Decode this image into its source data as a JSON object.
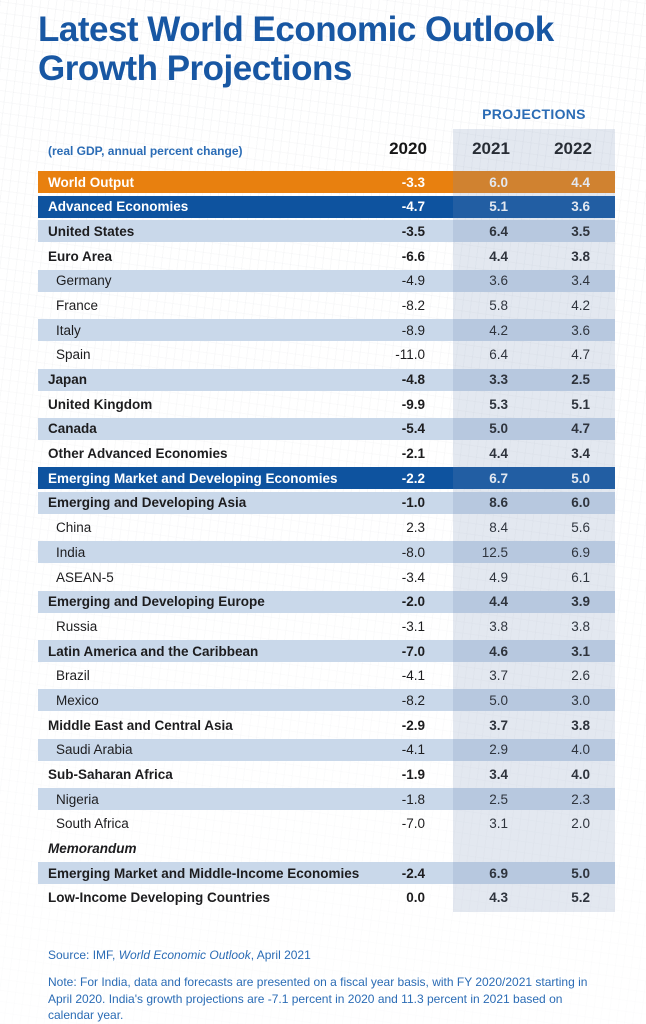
{
  "page": {
    "title": "Latest World Economic Outlook Growth Projections",
    "projections_label": "PROJECTIONS",
    "unit_label": "(real GDP, annual percent change)"
  },
  "columns": [
    "2020",
    "2021",
    "2022"
  ],
  "footer": {
    "source_prefix": "Source: IMF, ",
    "source_italic": "World Economic Outlook",
    "source_suffix": ", April 2021",
    "note": "Note: For India, data and forecasts are presented on a fiscal year basis, with FY 2020/2021 starting in April 2020. India's growth projections are -7.1 percent in 2020 and 11.3 percent in 2021 based on calendar year."
  },
  "colors": {
    "title_blue": "#1857A3",
    "accent_blue": "#2B6CB5",
    "orange": "#E8800F",
    "dark_blue": "#0E539F",
    "row_shade": "#C9D8EA",
    "band_overlay": "rgba(115,140,180,0.20)",
    "text_dark": "#1D1D1F"
  },
  "chart_data": {
    "type": "table",
    "title": "Latest World Economic Outlook Growth Projections",
    "subtitle": "(real GDP, annual percent change)",
    "columns": [
      "2020",
      "2021",
      "2022"
    ],
    "projection_columns": [
      "2021",
      "2022"
    ],
    "rows": [
      {
        "label": "World Output",
        "style": "orange",
        "shaded": false,
        "values": [
          "-3.3",
          "6.0",
          "4.4"
        ]
      },
      {
        "label": "Advanced Economies",
        "style": "darkblue",
        "shaded": false,
        "values": [
          "-4.7",
          "5.1",
          "3.6"
        ]
      },
      {
        "label": "United States",
        "style": "bold",
        "shaded": true,
        "values": [
          "-3.5",
          "6.4",
          "3.5"
        ]
      },
      {
        "label": "Euro Area",
        "style": "bold",
        "shaded": false,
        "values": [
          "-6.6",
          "4.4",
          "3.8"
        ]
      },
      {
        "label": "Germany",
        "style": "indent",
        "shaded": true,
        "values": [
          "-4.9",
          "3.6",
          "3.4"
        ]
      },
      {
        "label": "France",
        "style": "indent",
        "shaded": false,
        "values": [
          "-8.2",
          "5.8",
          "4.2"
        ]
      },
      {
        "label": "Italy",
        "style": "indent",
        "shaded": true,
        "values": [
          "-8.9",
          "4.2",
          "3.6"
        ]
      },
      {
        "label": "Spain",
        "style": "indent",
        "shaded": false,
        "values": [
          "-11.0",
          "6.4",
          "4.7"
        ]
      },
      {
        "label": "Japan",
        "style": "bold",
        "shaded": true,
        "values": [
          "-4.8",
          "3.3",
          "2.5"
        ]
      },
      {
        "label": "United Kingdom",
        "style": "bold",
        "shaded": false,
        "values": [
          "-9.9",
          "5.3",
          "5.1"
        ]
      },
      {
        "label": "Canada",
        "style": "bold",
        "shaded": true,
        "values": [
          "-5.4",
          "5.0",
          "4.7"
        ]
      },
      {
        "label": "Other Advanced Economies",
        "style": "bold",
        "shaded": false,
        "values": [
          "-2.1",
          "4.4",
          "3.4"
        ]
      },
      {
        "label": "Emerging Market and Developing Economies",
        "style": "darkblue",
        "shaded": false,
        "values": [
          "-2.2",
          "6.7",
          "5.0"
        ]
      },
      {
        "label": "Emerging and Developing Asia",
        "style": "bold",
        "shaded": true,
        "values": [
          "-1.0",
          "8.6",
          "6.0"
        ]
      },
      {
        "label": "China",
        "style": "indent",
        "shaded": false,
        "values": [
          "2.3",
          "8.4",
          "5.6"
        ]
      },
      {
        "label": "India",
        "style": "indent",
        "shaded": true,
        "values": [
          "-8.0",
          "12.5",
          "6.9"
        ]
      },
      {
        "label": "ASEAN-5",
        "style": "indent",
        "shaded": false,
        "values": [
          "-3.4",
          "4.9",
          "6.1"
        ]
      },
      {
        "label": "Emerging and Developing Europe",
        "style": "bold",
        "shaded": true,
        "values": [
          "-2.0",
          "4.4",
          "3.9"
        ]
      },
      {
        "label": "Russia",
        "style": "indent",
        "shaded": false,
        "values": [
          "-3.1",
          "3.8",
          "3.8"
        ]
      },
      {
        "label": "Latin America and the Caribbean",
        "style": "bold",
        "shaded": true,
        "values": [
          "-7.0",
          "4.6",
          "3.1"
        ]
      },
      {
        "label": "Brazil",
        "style": "indent",
        "shaded": false,
        "values": [
          "-4.1",
          "3.7",
          "2.6"
        ]
      },
      {
        "label": "Mexico",
        "style": "indent",
        "shaded": true,
        "values": [
          "-8.2",
          "5.0",
          "3.0"
        ]
      },
      {
        "label": "Middle East and Central Asia",
        "style": "bold",
        "shaded": false,
        "values": [
          "-2.9",
          "3.7",
          "3.8"
        ]
      },
      {
        "label": "Saudi Arabia",
        "style": "indent",
        "shaded": true,
        "values": [
          "-4.1",
          "2.9",
          "4.0"
        ]
      },
      {
        "label": "Sub-Saharan Africa",
        "style": "bold",
        "shaded": false,
        "values": [
          "-1.9",
          "3.4",
          "4.0"
        ]
      },
      {
        "label": "Nigeria",
        "style": "indent",
        "shaded": true,
        "values": [
          "-1.8",
          "2.5",
          "2.3"
        ]
      },
      {
        "label": "South Africa",
        "style": "indent",
        "shaded": false,
        "values": [
          "-7.0",
          "3.1",
          "2.0"
        ]
      },
      {
        "label": "Memorandum",
        "style": "memo",
        "shaded": false,
        "values": [
          "",
          "",
          ""
        ]
      },
      {
        "label": "Emerging Market and Middle-Income Economies",
        "style": "bold",
        "shaded": true,
        "values": [
          "-2.4",
          "6.9",
          "5.0"
        ]
      },
      {
        "label": "Low-Income Developing Countries",
        "style": "bold",
        "shaded": false,
        "values": [
          "0.0",
          "4.3",
          "5.2"
        ]
      }
    ]
  }
}
